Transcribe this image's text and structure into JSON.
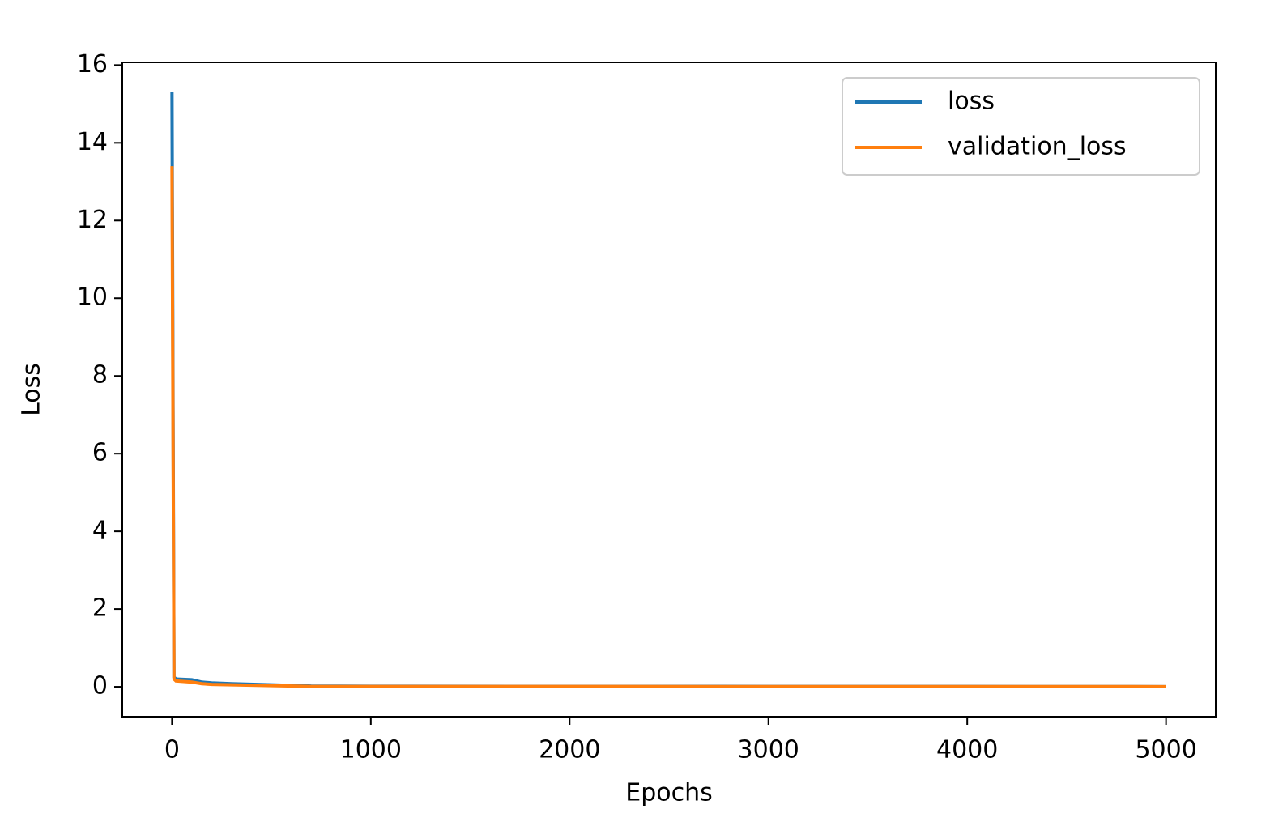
{
  "chart_data": {
    "type": "line",
    "x_label": "Epochs",
    "y_label": "Loss",
    "x": [
      0,
      10,
      20,
      100,
      150,
      200,
      300,
      500,
      700,
      1000,
      2000,
      3000,
      4000,
      5000
    ],
    "series": [
      {
        "name": "loss",
        "color": "#1f77b4",
        "values": [
          15.3,
          0.25,
          0.2,
          0.18,
          0.12,
          0.1,
          0.08,
          0.05,
          0.02,
          0.015,
          0.012,
          0.01,
          0.008,
          0.005
        ]
      },
      {
        "name": "validation_loss",
        "color": "#ff7f0e",
        "values": [
          13.4,
          0.2,
          0.15,
          0.12,
          0.08,
          0.06,
          0.05,
          0.03,
          0.01,
          0.01,
          0.008,
          0.007,
          0.006,
          0.005
        ]
      }
    ],
    "xlim": [
      -250,
      5250
    ],
    "ylim": [
      -0.77,
      16.07
    ],
    "xticks": [
      0,
      1000,
      2000,
      3000,
      4000,
      5000
    ],
    "yticks": [
      0,
      2,
      4,
      6,
      8,
      10,
      12,
      14,
      16
    ],
    "legend": "upper right"
  }
}
